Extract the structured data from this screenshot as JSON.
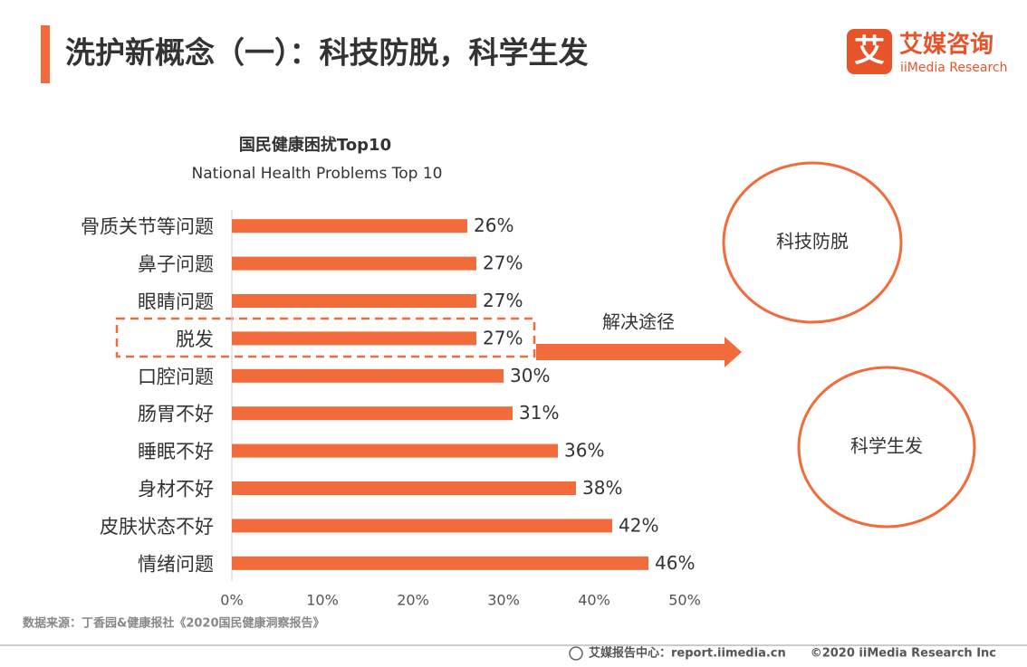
{
  "header": {
    "title": "洗护新概念（一）：科技防脱，科学生发",
    "logo_icon": "艾",
    "logo_name": "艾媒咨询",
    "logo_sub": "iiMedia Research"
  },
  "chart_data": {
    "type": "bar",
    "orientation": "horizontal",
    "title": "国民健康困扰Top10",
    "subtitle": "National Health Problems Top 10",
    "categories": [
      "骨质关节等问题",
      "鼻子问题",
      "眼睛问题",
      "脱发",
      "口腔问题",
      "肠胃不好",
      "睡眠不好",
      "身材不好",
      "皮肤状态不好",
      "情绪问题"
    ],
    "values": [
      26,
      27,
      27,
      27,
      30,
      31,
      36,
      38,
      42,
      46
    ],
    "value_labels": [
      "26%",
      "27%",
      "27%",
      "27%",
      "30%",
      "31%",
      "36%",
      "38%",
      "42%",
      "46%"
    ],
    "color": "#f26b3a",
    "xlim": [
      0,
      50
    ],
    "xticks": [
      {
        "value": 0,
        "label": "0%"
      },
      {
        "value": 10,
        "label": "10%"
      },
      {
        "value": 20,
        "label": "20%"
      },
      {
        "value": 30,
        "label": "30%"
      },
      {
        "value": 40,
        "label": "40%"
      },
      {
        "value": 50,
        "label": "50%"
      }
    ],
    "annotation": "解决途径"
  },
  "solutions": [
    "科技防脱",
    "科学生发"
  ],
  "source": "数据来源：丁香园&健康报社《2020国民健康洞察报告》",
  "footer": {
    "site": "艾媒报告中心：report.iimedia.cn",
    "copyright": "©2020  iiMedia Research  Inc"
  }
}
